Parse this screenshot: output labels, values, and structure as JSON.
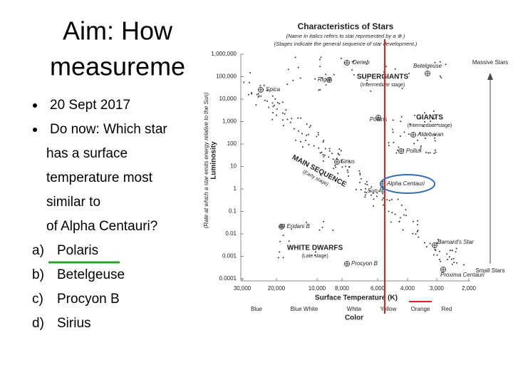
{
  "slide": {
    "title": [
      "Aim: How",
      "measureme"
    ],
    "bullets": [
      [
        "20 Sept 2017"
      ],
      [
        "Do now: Which star",
        "has a surface",
        "temperature most",
        "similar to",
        "of Alpha Centauri?"
      ]
    ],
    "options": [
      {
        "letter": "a)",
        "text": "Polaris"
      },
      {
        "letter": "b)",
        "text": "Betelgeuse"
      },
      {
        "letter": "c)",
        "text": "Procyon B"
      },
      {
        "letter": "d)",
        "text": "Sirius"
      }
    ]
  },
  "figure": {
    "title": "Characteristics of Stars",
    "notes": [
      "(Name in italics refers to star represented by a ⊕ )",
      "(Stages indicate the general sequence of star development.)"
    ],
    "y_label": "Luminosity",
    "y_sublabel": "(Rate at which a star emits energy relative to the Sun)",
    "y_ticks": [
      "1,000,000",
      "100,000",
      "10,000",
      "1,000",
      "100",
      "10",
      "1",
      "0.1",
      "0.01",
      "0.001",
      "0.0001"
    ],
    "x_label": "Surface Temperature (K)",
    "x_ticks": [
      "30,000",
      "20,000",
      "10,000",
      "8,000",
      "6,000",
      "4,000",
      "3,000",
      "2,000"
    ],
    "colors": [
      "Blue",
      "Blue White",
      "White",
      "Yellow",
      "Orange",
      "Red"
    ],
    "color_label": "Color",
    "regions": [
      {
        "name": "SUPERGIANTS",
        "stage": "(Intermediate stage)"
      },
      {
        "name": "GIANTS",
        "stage": "(Intermediate stage)"
      },
      {
        "name": "MAIN SEQUENCE",
        "stage": "(Early stage)"
      },
      {
        "name": "WHITE DWARFS",
        "stage": "(Late stage)"
      }
    ],
    "stars": [
      "Deneb",
      "Rigel",
      "Betelgeuse",
      "Spica",
      "Polaris",
      "Aldebaran",
      "Pollux",
      "Sirius",
      "Alpha Centauri",
      "Sun",
      "40 Eridani B",
      "Procyon B",
      "Barnard's Star",
      "Proxima Centauri"
    ],
    "side_labels": [
      "Massive Stars",
      "Small Stars"
    ]
  }
}
